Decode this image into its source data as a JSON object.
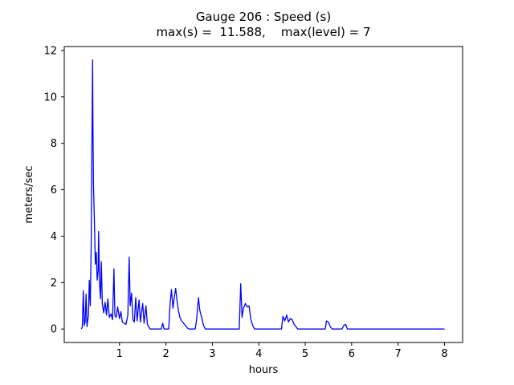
{
  "figure": {
    "title_line1": "Gauge 206 : Speed (s)",
    "title_line2": "max(s) =  11.588,    max(level) = 7",
    "background": "#ffffff"
  },
  "chart_data": {
    "type": "line",
    "title": "Gauge 206 : Speed (s)",
    "subtitle": "max(s) =  11.588,    max(level) = 7",
    "xlabel": "hours",
    "ylabel": "meters/sec",
    "xlim": [
      -0.19,
      8.39
    ],
    "ylim": [
      -0.58,
      12.17
    ],
    "xticks": [
      1,
      2,
      3,
      4,
      5,
      6,
      7,
      8
    ],
    "yticks": [
      0,
      2,
      4,
      6,
      8,
      10,
      12
    ],
    "grid": false,
    "legend": "none",
    "max_s": 11.588,
    "max_level": 7,
    "series": [
      {
        "name": "speed",
        "color": "#0000ff",
        "points": [
          [
            0.18,
            0.0
          ],
          [
            0.2,
            0.1
          ],
          [
            0.22,
            1.65
          ],
          [
            0.24,
            0.15
          ],
          [
            0.26,
            0.3
          ],
          [
            0.28,
            1.5
          ],
          [
            0.3,
            0.1
          ],
          [
            0.33,
            0.6
          ],
          [
            0.35,
            2.1
          ],
          [
            0.37,
            1.0
          ],
          [
            0.39,
            3.5
          ],
          [
            0.41,
            9.0
          ],
          [
            0.42,
            11.588
          ],
          [
            0.43,
            8.5
          ],
          [
            0.44,
            6.2
          ],
          [
            0.46,
            4.6
          ],
          [
            0.48,
            2.8
          ],
          [
            0.5,
            3.3
          ],
          [
            0.52,
            2.1
          ],
          [
            0.54,
            2.5
          ],
          [
            0.55,
            4.2
          ],
          [
            0.57,
            2.0
          ],
          [
            0.59,
            1.3
          ],
          [
            0.61,
            2.9
          ],
          [
            0.63,
            1.1
          ],
          [
            0.66,
            0.7
          ],
          [
            0.69,
            1.15
          ],
          [
            0.72,
            0.6
          ],
          [
            0.75,
            1.3
          ],
          [
            0.78,
            0.5
          ],
          [
            0.82,
            0.65
          ],
          [
            0.85,
            0.4
          ],
          [
            0.88,
            2.6
          ],
          [
            0.9,
            0.6
          ],
          [
            0.93,
            0.5
          ],
          [
            0.96,
            0.95
          ],
          [
            1.0,
            0.45
          ],
          [
            1.03,
            0.75
          ],
          [
            1.06,
            0.3
          ],
          [
            1.1,
            0.25
          ],
          [
            1.14,
            0.2
          ],
          [
            1.18,
            0.6
          ],
          [
            1.21,
            3.1
          ],
          [
            1.23,
            1.0
          ],
          [
            1.26,
            1.55
          ],
          [
            1.29,
            0.4
          ],
          [
            1.32,
            0.3
          ],
          [
            1.35,
            1.35
          ],
          [
            1.38,
            0.35
          ],
          [
            1.42,
            1.25
          ],
          [
            1.45,
            0.3
          ],
          [
            1.5,
            1.1
          ],
          [
            1.53,
            0.25
          ],
          [
            1.57,
            1.0
          ],
          [
            1.6,
            0.2
          ],
          [
            1.63,
            0.1
          ],
          [
            1.66,
            0.0
          ],
          [
            1.9,
            0.0
          ],
          [
            1.93,
            0.25
          ],
          [
            1.96,
            0.0
          ],
          [
            2.06,
            0.0
          ],
          [
            2.09,
            1.1
          ],
          [
            2.12,
            1.7
          ],
          [
            2.15,
            0.9
          ],
          [
            2.18,
            1.35
          ],
          [
            2.21,
            1.75
          ],
          [
            2.24,
            1.2
          ],
          [
            2.27,
            0.8
          ],
          [
            2.3,
            0.5
          ],
          [
            2.34,
            0.35
          ],
          [
            2.38,
            0.25
          ],
          [
            2.42,
            0.15
          ],
          [
            2.46,
            0.05
          ],
          [
            2.5,
            0.0
          ],
          [
            2.63,
            0.0
          ],
          [
            2.66,
            0.4
          ],
          [
            2.7,
            1.35
          ],
          [
            2.73,
            0.8
          ],
          [
            2.77,
            0.5
          ],
          [
            2.81,
            0.15
          ],
          [
            2.85,
            0.0
          ],
          [
            3.58,
            0.0
          ],
          [
            3.61,
            1.95
          ],
          [
            3.64,
            0.5
          ],
          [
            3.67,
            0.9
          ],
          [
            3.71,
            1.1
          ],
          [
            3.75,
            0.95
          ],
          [
            3.79,
            1.0
          ],
          [
            3.83,
            0.4
          ],
          [
            3.87,
            0.15
          ],
          [
            3.91,
            0.0
          ],
          [
            4.49,
            0.0
          ],
          [
            4.52,
            0.55
          ],
          [
            4.56,
            0.35
          ],
          [
            4.6,
            0.6
          ],
          [
            4.64,
            0.3
          ],
          [
            4.68,
            0.45
          ],
          [
            4.72,
            0.4
          ],
          [
            4.76,
            0.2
          ],
          [
            4.8,
            0.1
          ],
          [
            4.84,
            0.0
          ],
          [
            5.43,
            0.0
          ],
          [
            5.46,
            0.35
          ],
          [
            5.5,
            0.3
          ],
          [
            5.54,
            0.1
          ],
          [
            5.58,
            0.0
          ],
          [
            5.79,
            0.0
          ],
          [
            5.83,
            0.15
          ],
          [
            5.87,
            0.2
          ],
          [
            5.91,
            0.0
          ],
          [
            8.0,
            0.0
          ]
        ]
      }
    ]
  }
}
